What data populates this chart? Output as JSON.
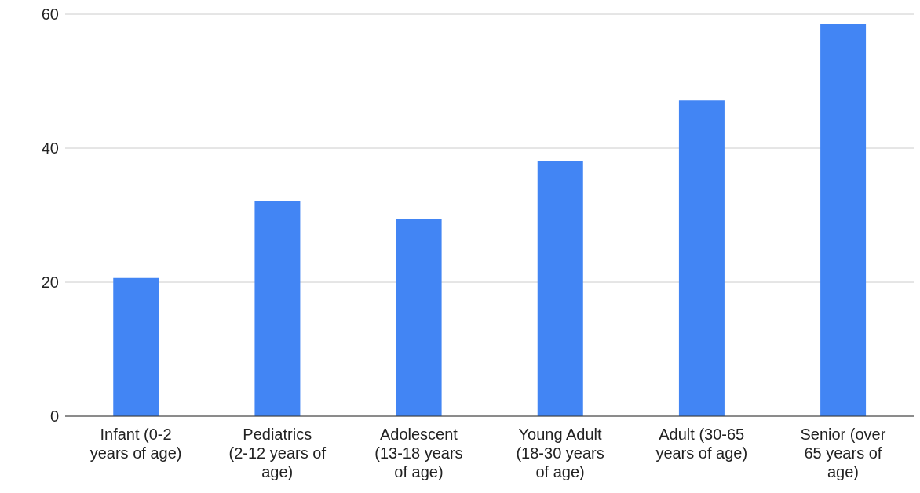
{
  "chart_data": {
    "type": "bar",
    "categories": [
      "Infant (0-2 years of age)",
      "Pediatrics (2-12 years of age)",
      "Adolescent (13-18 years of age)",
      "Young Adult (18-30 years of age)",
      "Adult (30-65 years of age)",
      "Senior (over 65 years of age)"
    ],
    "values": [
      20.6,
      32.1,
      29.4,
      38.1,
      47.1,
      58.6
    ],
    "color": "#4285f4",
    "ylim": [
      0,
      60
    ],
    "yticks": [
      0,
      20,
      40,
      60
    ],
    "grid": "y"
  }
}
